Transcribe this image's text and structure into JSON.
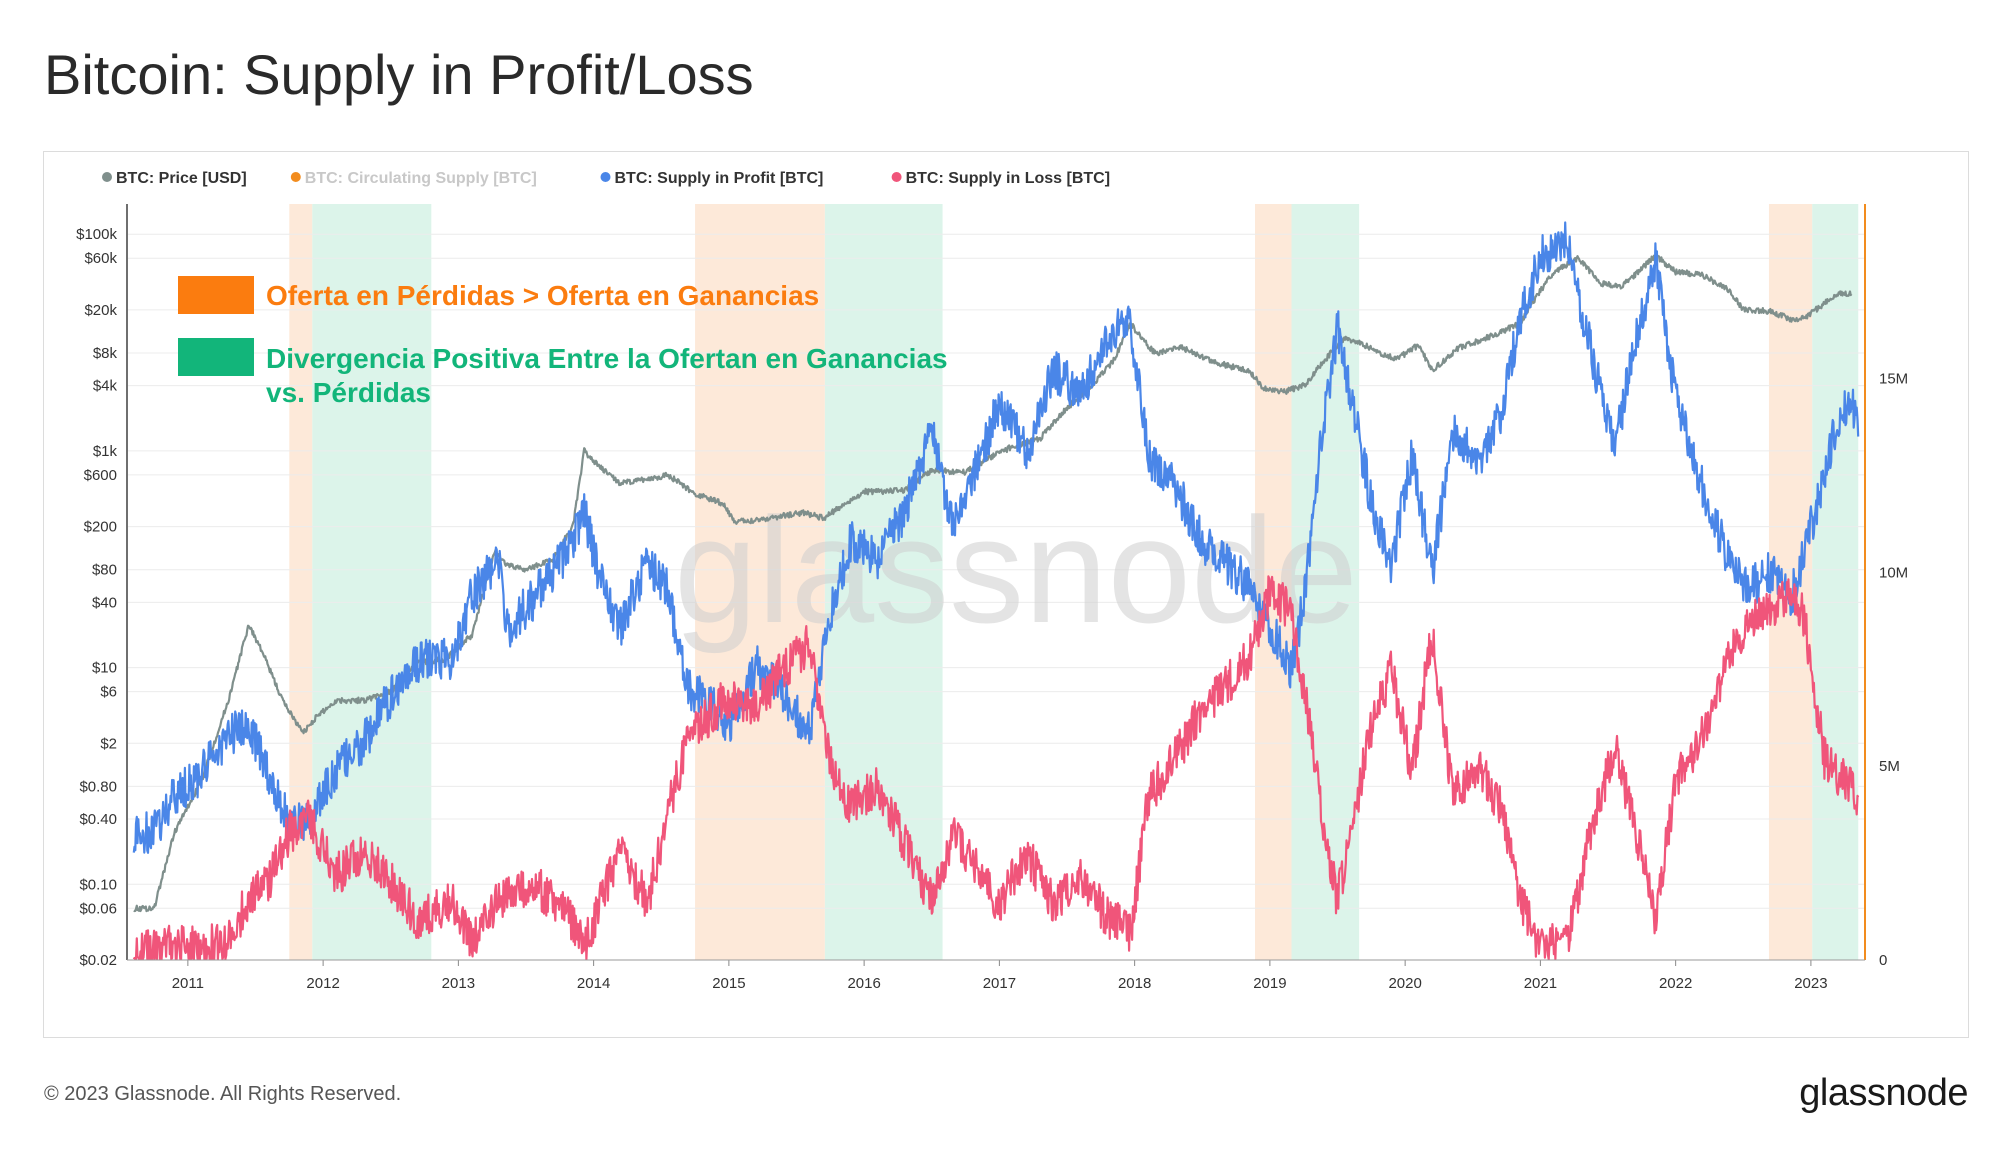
{
  "title": "Bitcoin: Supply in Profit/Loss",
  "footer": {
    "copyright": "© 2023 Glassnode. All Rights Reserved.",
    "brand": "glassnode"
  },
  "watermark": "glassnode",
  "colors": {
    "price": "#7f8f8c",
    "circulating": "#f28c1e",
    "profit": "#4a86e8",
    "loss": "#f0557a",
    "loss_band": "#fde9d9",
    "divergence_band": "#dcf4ea",
    "annot_orange": "#fb7c0f",
    "annot_green": "#12b57a"
  },
  "chart_data": {
    "type": "line",
    "legend": [
      {
        "label": "BTC: Price [USD]",
        "color": "#7f8f8c",
        "muted": false
      },
      {
        "label": "BTC: Circulating Supply [BTC]",
        "color": "#f28c1e",
        "muted": true
      },
      {
        "label": "BTC: Supply in Profit [BTC]",
        "color": "#4a86e8",
        "muted": false
      },
      {
        "label": "BTC: Supply in Loss [BTC]",
        "color": "#f0557a",
        "muted": false
      }
    ],
    "x_range": [
      2010.55,
      2023.4
    ],
    "x_ticks": [
      "2011",
      "2012",
      "2013",
      "2014",
      "2015",
      "2016",
      "2017",
      "2018",
      "2019",
      "2020",
      "2021",
      "2022",
      "2023"
    ],
    "y_left": {
      "scale": "log",
      "range": [
        0.02,
        190000
      ],
      "ticks": [
        [
          "$100k",
          100000
        ],
        [
          "$60k",
          60000
        ],
        [
          "$20k",
          20000
        ],
        [
          "$8k",
          8000
        ],
        [
          "$4k",
          4000
        ],
        [
          "$1k",
          1000
        ],
        [
          "$600",
          600
        ],
        [
          "$200",
          200
        ],
        [
          "$80",
          80
        ],
        [
          "$40",
          40
        ],
        [
          "$10",
          10
        ],
        [
          "$6",
          6
        ],
        [
          "$2",
          2
        ],
        [
          "$0.80",
          0.8
        ],
        [
          "$0.40",
          0.4
        ],
        [
          "$0.10",
          0.1
        ],
        [
          "$0.06",
          0.06
        ],
        [
          "$0.02",
          0.02
        ]
      ]
    },
    "y_right": {
      "scale": "linear",
      "range": [
        0,
        19500000
      ],
      "ticks": [
        [
          "15M",
          15000000
        ],
        [
          "10M",
          10000000
        ],
        [
          "5M",
          5000000
        ],
        [
          "0",
          0
        ]
      ]
    },
    "loss_dominant_periods": [
      [
        2011.75,
        2011.92
      ],
      [
        2014.75,
        2015.71
      ],
      [
        2018.89,
        2019.16
      ],
      [
        2022.69,
        2023.01
      ]
    ],
    "positive_divergence_periods": [
      [
        2011.92,
        2012.8
      ],
      [
        2015.71,
        2016.58
      ],
      [
        2019.16,
        2019.66
      ],
      [
        2023.01,
        2023.35
      ]
    ],
    "annotations": [
      {
        "label": "Oferta en Pérdidas > Oferta en Ganancias",
        "color": "#fb7c0f"
      },
      {
        "label": "Divergencia Positiva Entre la Ofertan en Ganancias",
        "label2": "vs. Pérdidas",
        "color": "#12b57a"
      }
    ],
    "series": [
      {
        "name": "BTC: Price [USD]",
        "axis": "left",
        "points": [
          [
            2010.6,
            0.06
          ],
          [
            2010.75,
            0.06
          ],
          [
            2010.9,
            0.3
          ],
          [
            2011.1,
            0.9
          ],
          [
            2011.3,
            5
          ],
          [
            2011.45,
            25
          ],
          [
            2011.55,
            14
          ],
          [
            2011.7,
            5
          ],
          [
            2011.85,
            2.5
          ],
          [
            2011.95,
            3.5
          ],
          [
            2012.1,
            5
          ],
          [
            2012.3,
            5
          ],
          [
            2012.5,
            6
          ],
          [
            2012.7,
            11
          ],
          [
            2012.9,
            12
          ],
          [
            2013.1,
            20
          ],
          [
            2013.27,
            120
          ],
          [
            2013.35,
            90
          ],
          [
            2013.5,
            80
          ],
          [
            2013.7,
            100
          ],
          [
            2013.85,
            210
          ],
          [
            2013.93,
            1000
          ],
          [
            2014.05,
            700
          ],
          [
            2014.2,
            500
          ],
          [
            2014.4,
            550
          ],
          [
            2014.55,
            600
          ],
          [
            2014.75,
            400
          ],
          [
            2014.95,
            330
          ],
          [
            2015.05,
            220
          ],
          [
            2015.3,
            240
          ],
          [
            2015.55,
            270
          ],
          [
            2015.7,
            240
          ],
          [
            2015.85,
            320
          ],
          [
            2016.0,
            420
          ],
          [
            2016.3,
            430
          ],
          [
            2016.5,
            660
          ],
          [
            2016.75,
            640
          ],
          [
            2016.95,
            900
          ],
          [
            2017.1,
            1100
          ],
          [
            2017.3,
            1300
          ],
          [
            2017.5,
            2500
          ],
          [
            2017.7,
            4200
          ],
          [
            2017.85,
            7000
          ],
          [
            2017.97,
            15000
          ],
          [
            2018.05,
            11000
          ],
          [
            2018.15,
            8000
          ],
          [
            2018.35,
            9000
          ],
          [
            2018.6,
            6500
          ],
          [
            2018.85,
            5500
          ],
          [
            2018.95,
            3800
          ],
          [
            2019.1,
            3500
          ],
          [
            2019.25,
            4000
          ],
          [
            2019.45,
            8000
          ],
          [
            2019.55,
            11000
          ],
          [
            2019.7,
            9500
          ],
          [
            2019.85,
            7500
          ],
          [
            2019.95,
            7200
          ],
          [
            2020.1,
            9500
          ],
          [
            2020.2,
            5500
          ],
          [
            2020.4,
            9000
          ],
          [
            2020.6,
            11000
          ],
          [
            2020.85,
            15000
          ],
          [
            2020.99,
            29000
          ],
          [
            2021.1,
            45000
          ],
          [
            2021.28,
            60000
          ],
          [
            2021.45,
            35000
          ],
          [
            2021.6,
            33000
          ],
          [
            2021.75,
            48000
          ],
          [
            2021.85,
            64000
          ],
          [
            2022.0,
            45000
          ],
          [
            2022.2,
            42000
          ],
          [
            2022.4,
            30000
          ],
          [
            2022.5,
            20000
          ],
          [
            2022.7,
            19500
          ],
          [
            2022.85,
            16500
          ],
          [
            2022.95,
            16800
          ],
          [
            2023.1,
            23000
          ],
          [
            2023.2,
            28000
          ],
          [
            2023.3,
            28000
          ]
        ]
      },
      {
        "name": "BTC: Supply in Profit [BTC]",
        "axis": "right",
        "points": [
          [
            2010.6,
            3.2
          ],
          [
            2010.75,
            3.3
          ],
          [
            2010.9,
            4.2
          ],
          [
            2011.1,
            4.8
          ],
          [
            2011.3,
            5.8
          ],
          [
            2011.45,
            6.0
          ],
          [
            2011.6,
            4.8
          ],
          [
            2011.75,
            3.5
          ],
          [
            2011.9,
            3.6
          ],
          [
            2012.1,
            4.9
          ],
          [
            2012.3,
            5.6
          ],
          [
            2012.5,
            6.8
          ],
          [
            2012.7,
            7.7
          ],
          [
            2012.95,
            7.8
          ],
          [
            2013.1,
            9.4
          ],
          [
            2013.3,
            10.3
          ],
          [
            2013.35,
            8.5
          ],
          [
            2013.55,
            9.3
          ],
          [
            2013.8,
            10.5
          ],
          [
            2013.93,
            11.6
          ],
          [
            2014.05,
            9.8
          ],
          [
            2014.2,
            8.6
          ],
          [
            2014.4,
            10.3
          ],
          [
            2014.55,
            9.5
          ],
          [
            2014.7,
            7.0
          ],
          [
            2014.85,
            6.6
          ],
          [
            2015.0,
            6.1
          ],
          [
            2015.2,
            7.6
          ],
          [
            2015.4,
            6.8
          ],
          [
            2015.6,
            5.8
          ],
          [
            2015.75,
            9.0
          ],
          [
            2015.9,
            10.8
          ],
          [
            2016.1,
            10.3
          ],
          [
            2016.3,
            11.6
          ],
          [
            2016.5,
            13.8
          ],
          [
            2016.65,
            11.2
          ],
          [
            2016.85,
            12.8
          ],
          [
            2017.0,
            14.4
          ],
          [
            2017.2,
            13.1
          ],
          [
            2017.4,
            15.2
          ],
          [
            2017.6,
            14.6
          ],
          [
            2017.8,
            16.1
          ],
          [
            2017.97,
            16.4
          ],
          [
            2018.1,
            13.0
          ],
          [
            2018.3,
            12.2
          ],
          [
            2018.5,
            10.8
          ],
          [
            2018.7,
            10.2
          ],
          [
            2018.85,
            9.6
          ],
          [
            2019.0,
            8.6
          ],
          [
            2019.15,
            7.5
          ],
          [
            2019.25,
            9.2
          ],
          [
            2019.4,
            14.0
          ],
          [
            2019.5,
            16.3
          ],
          [
            2019.6,
            14.5
          ],
          [
            2019.75,
            11.8
          ],
          [
            2019.9,
            10.2
          ],
          [
            2020.05,
            13.0
          ],
          [
            2020.2,
            10.0
          ],
          [
            2020.35,
            13.6
          ],
          [
            2020.55,
            13.0
          ],
          [
            2020.7,
            14.0
          ],
          [
            2020.85,
            16.5
          ],
          [
            2021.0,
            18.2
          ],
          [
            2021.2,
            18.5
          ],
          [
            2021.4,
            15.3
          ],
          [
            2021.55,
            13.2
          ],
          [
            2021.7,
            16.0
          ],
          [
            2021.85,
            18.0
          ],
          [
            2022.0,
            14.5
          ],
          [
            2022.2,
            12.2
          ],
          [
            2022.4,
            10.2
          ],
          [
            2022.55,
            9.6
          ],
          [
            2022.7,
            10.0
          ],
          [
            2022.85,
            9.3
          ],
          [
            2022.95,
            10.5
          ],
          [
            2023.1,
            12.5
          ],
          [
            2023.2,
            14.0
          ],
          [
            2023.3,
            14.6
          ],
          [
            2023.35,
            13.5
          ]
        ]
      },
      {
        "name": "BTC: Supply in Loss [BTC]",
        "axis": "right",
        "points": [
          [
            2010.6,
            0.1
          ],
          [
            2010.75,
            0.3
          ],
          [
            2010.9,
            0.4
          ],
          [
            2011.1,
            0.3
          ],
          [
            2011.3,
            0.5
          ],
          [
            2011.45,
            1.6
          ],
          [
            2011.6,
            2.0
          ],
          [
            2011.75,
            3.3
          ],
          [
            2011.9,
            3.6
          ],
          [
            2012.1,
            2.2
          ],
          [
            2012.3,
            2.8
          ],
          [
            2012.5,
            2.0
          ],
          [
            2012.7,
            1.0
          ],
          [
            2012.95,
            1.5
          ],
          [
            2013.1,
            0.4
          ],
          [
            2013.3,
            1.6
          ],
          [
            2013.55,
            2.0
          ],
          [
            2013.8,
            1.2
          ],
          [
            2013.93,
            0.3
          ],
          [
            2014.05,
            1.5
          ],
          [
            2014.2,
            2.8
          ],
          [
            2014.4,
            1.5
          ],
          [
            2014.55,
            3.8
          ],
          [
            2014.7,
            5.8
          ],
          [
            2014.85,
            6.3
          ],
          [
            2015.0,
            6.8
          ],
          [
            2015.2,
            6.5
          ],
          [
            2015.4,
            7.5
          ],
          [
            2015.6,
            8.2
          ],
          [
            2015.75,
            5.0
          ],
          [
            2015.9,
            4.0
          ],
          [
            2016.1,
            4.5
          ],
          [
            2016.3,
            3.0
          ],
          [
            2016.5,
            1.5
          ],
          [
            2016.65,
            3.2
          ],
          [
            2016.85,
            2.4
          ],
          [
            2017.0,
            1.4
          ],
          [
            2017.2,
            2.8
          ],
          [
            2017.4,
            1.4
          ],
          [
            2017.6,
            2.2
          ],
          [
            2017.8,
            1.1
          ],
          [
            2017.97,
            0.7
          ],
          [
            2018.1,
            4.2
          ],
          [
            2018.3,
            5.2
          ],
          [
            2018.5,
            6.5
          ],
          [
            2018.7,
            7.2
          ],
          [
            2018.85,
            7.8
          ],
          [
            2019.0,
            9.5
          ],
          [
            2019.15,
            9.0
          ],
          [
            2019.25,
            7.0
          ],
          [
            2019.4,
            3.5
          ],
          [
            2019.5,
            1.5
          ],
          [
            2019.6,
            3.4
          ],
          [
            2019.75,
            6.0
          ],
          [
            2019.9,
            7.5
          ],
          [
            2020.05,
            4.8
          ],
          [
            2020.2,
            8.5
          ],
          [
            2020.35,
            4.2
          ],
          [
            2020.55,
            5.0
          ],
          [
            2020.7,
            4.0
          ],
          [
            2020.85,
            1.6
          ],
          [
            2021.0,
            0.3
          ],
          [
            2021.2,
            0.5
          ],
          [
            2021.4,
            3.7
          ],
          [
            2021.55,
            5.5
          ],
          [
            2021.7,
            3.5
          ],
          [
            2021.85,
            1.0
          ],
          [
            2022.0,
            4.6
          ],
          [
            2022.2,
            5.8
          ],
          [
            2022.4,
            8.0
          ],
          [
            2022.55,
            8.8
          ],
          [
            2022.7,
            9.0
          ],
          [
            2022.85,
            9.5
          ],
          [
            2022.95,
            8.8
          ],
          [
            2023.1,
            5.2
          ],
          [
            2023.2,
            4.8
          ],
          [
            2023.3,
            4.5
          ],
          [
            2023.35,
            4.2
          ]
        ]
      }
    ]
  }
}
